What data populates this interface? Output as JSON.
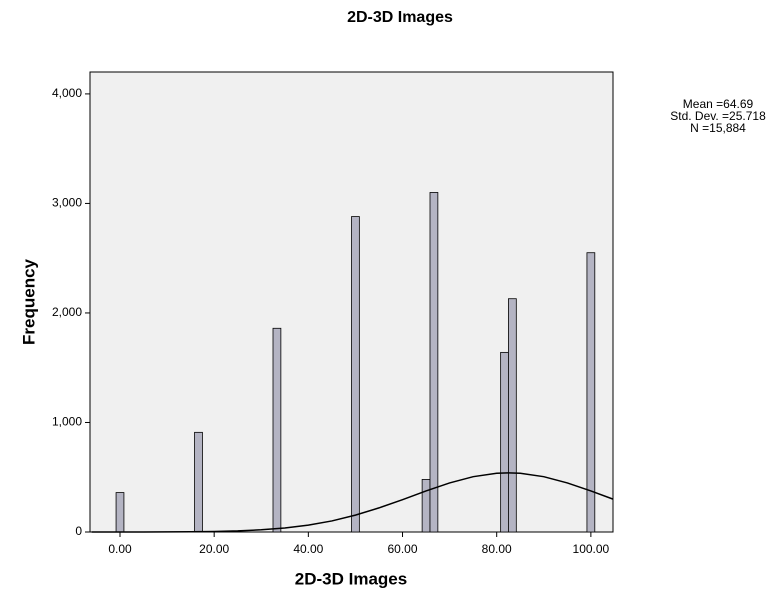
{
  "chart_data": {
    "type": "histogram",
    "title": "2D-3D Images",
    "x_label": "2D-3D Images",
    "y_label": "Frequency",
    "x": [
      0,
      16.67,
      33.33,
      50,
      65,
      66.67,
      81.67,
      83.33,
      100
    ],
    "values": [
      360,
      910,
      1860,
      2880,
      480,
      3100,
      1640,
      2130,
      2550
    ],
    "bar_width": 1.67,
    "color": "#b4b4c3",
    "xlim": [
      -6.37,
      104.7
    ],
    "ylim": [
      0,
      4200
    ],
    "xticks": [
      {
        "value": 0,
        "label": "0.00"
      },
      {
        "value": 20,
        "label": "20.00"
      },
      {
        "value": 40,
        "label": "40.00"
      },
      {
        "value": 60,
        "label": "60.00"
      },
      {
        "value": 80,
        "label": "80.00"
      },
      {
        "value": 100,
        "label": "100.00"
      }
    ],
    "yticks": [
      0,
      {
        "value": 1000,
        "label": "1,000"
      },
      {
        "value": 2000,
        "label": "2,000"
      },
      {
        "value": 3000,
        "label": "3,000"
      },
      {
        "value": 4000,
        "label": "4,000"
      }
    ],
    "fit_x": [
      -6,
      0,
      5,
      10,
      15,
      20,
      25,
      30,
      35,
      40,
      45,
      50,
      55,
      60,
      65,
      70,
      75,
      80,
      82.5,
      85,
      90,
      95,
      100,
      104.7
    ],
    "fit_y": [
      0,
      0,
      0,
      1,
      2,
      5,
      10,
      20,
      37,
      63,
      101,
      154,
      220,
      295,
      375,
      448,
      505,
      536,
      540,
      536,
      505,
      448,
      375,
      300
    ],
    "stats": [
      "Mean =64.69",
      "Std. Dev. =25.718",
      "N =15,884"
    ]
  }
}
